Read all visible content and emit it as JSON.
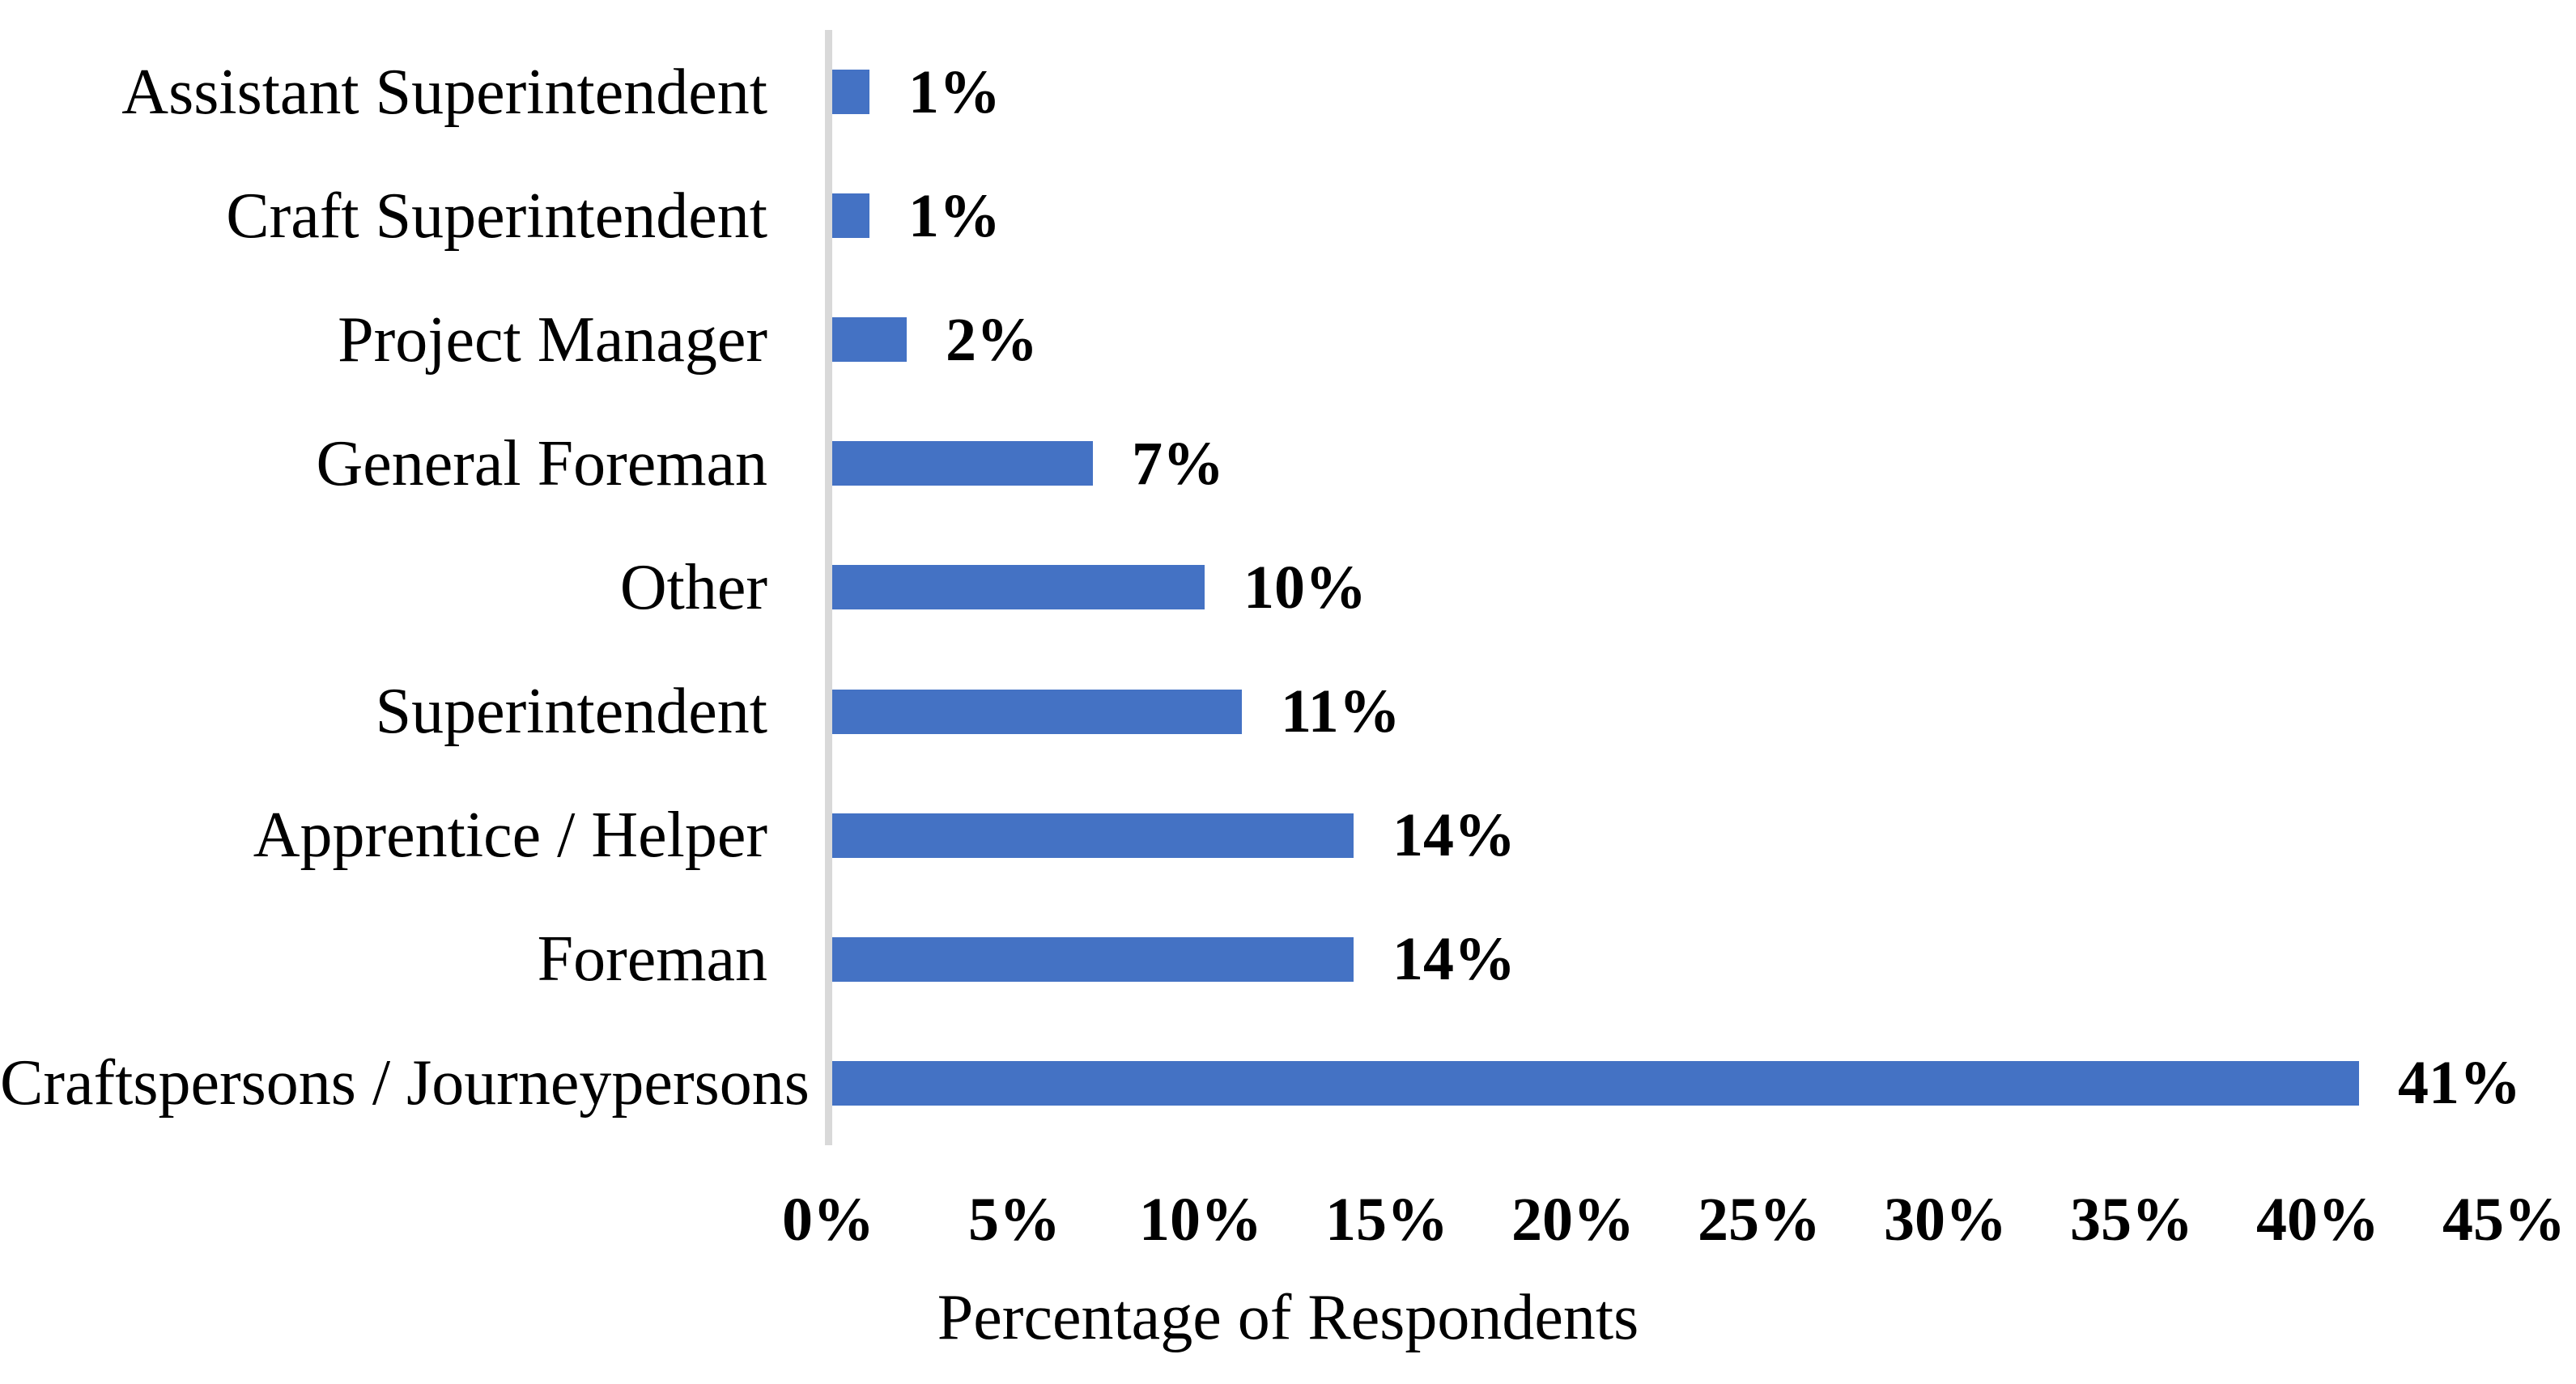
{
  "chart_data": {
    "type": "bar",
    "orientation": "horizontal",
    "categories": [
      "Assistant Superintendent",
      "Craft Superintendent",
      "Project Manager",
      "General Foreman",
      "Other",
      "Superintendent",
      "Apprentice / Helper",
      "Foreman",
      "Craftspersons / Journeypersons"
    ],
    "values": [
      1,
      1,
      2,
      7,
      10,
      11,
      14,
      14,
      41
    ],
    "data_labels": [
      "1%",
      "1%",
      "2%",
      "7%",
      "10%",
      "11%",
      "14%",
      "14%",
      "41%"
    ],
    "x_ticks": [
      "0%",
      "5%",
      "10%",
      "15%",
      "20%",
      "25%",
      "30%",
      "35%",
      "40%",
      "45%"
    ],
    "xlim": [
      0,
      45
    ],
    "xlabel": "Percentage of Respondents",
    "title": "",
    "grid": false,
    "legend": false,
    "bar_color": "#4472C4",
    "axis_line_color": "#D9D9D9",
    "text_color": "#000000",
    "background": "#FFFFFF"
  }
}
